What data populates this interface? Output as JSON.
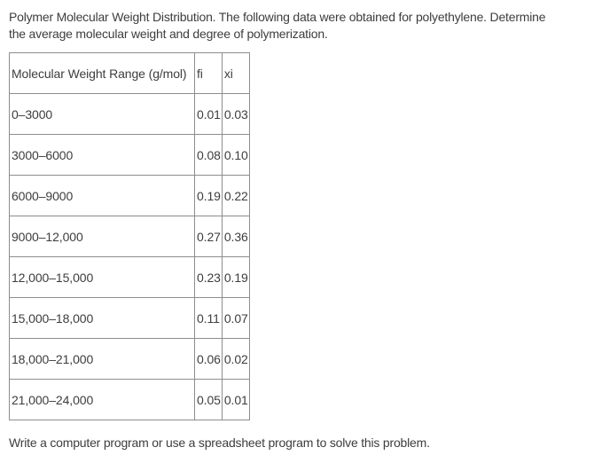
{
  "intro": {
    "lines": [
      "Polymer Molecular Weight Distribution. The following data were obtained for polyethylene. Determine",
      "the average molecular weight and degree of polymerization."
    ]
  },
  "table": {
    "columns": [
      "Molecular Weight Range (g/mol)",
      "fi",
      "xi"
    ],
    "rows": [
      {
        "range": "0–3000",
        "fi": "0.01",
        "xi": "0.03"
      },
      {
        "range": "3000–6000",
        "fi": "0.08",
        "xi": "0.10"
      },
      {
        "range": "6000–9000",
        "fi": "0.19",
        "xi": "0.22"
      },
      {
        "range": "9000–12,000",
        "fi": "0.27",
        "xi": "0.36"
      },
      {
        "range": "12,000–15,000",
        "fi": "0.23",
        "xi": "0.19"
      },
      {
        "range": "15,000–18,000",
        "fi": "0.11",
        "xi": "0.07"
      },
      {
        "range": "18,000–21,000",
        "fi": "0.06",
        "xi": "0.02"
      },
      {
        "range": "21,000–24,000",
        "fi": "0.05",
        "xi": "0.01"
      }
    ]
  },
  "footer": {
    "text": "Write a computer program or use a spreadsheet program to solve this problem."
  },
  "colors": {
    "text": "#3d3d3d",
    "border": "#8d8d8d",
    "background": "#ffffff"
  }
}
